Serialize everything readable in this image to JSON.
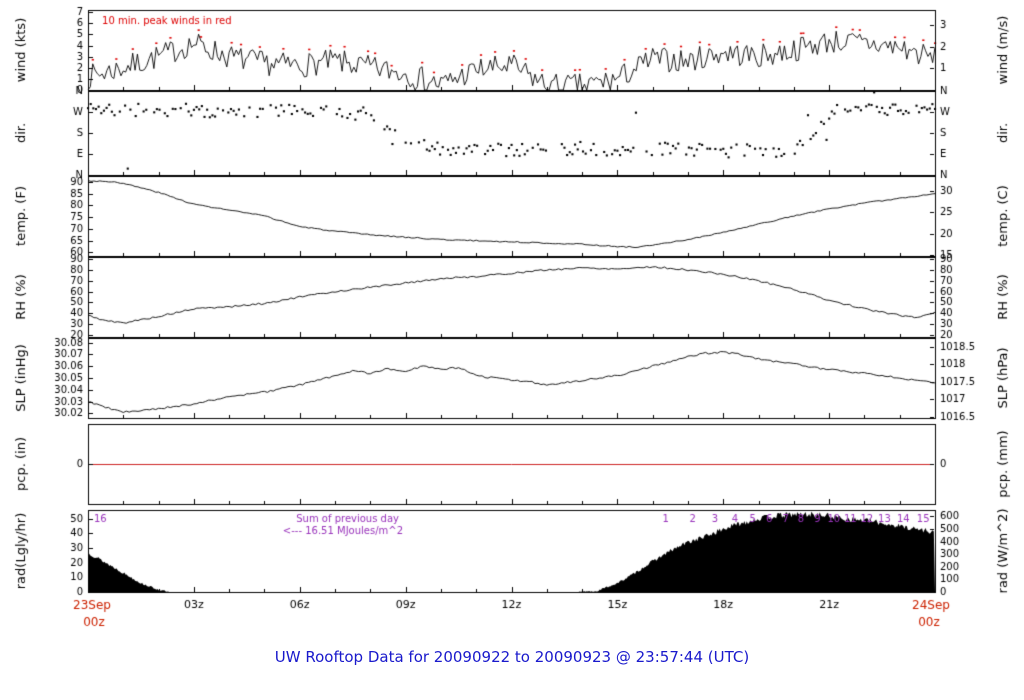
{
  "title": "UW Rooftop Data for 20090922  to  20090923 @ 23:57:44  (UTC)",
  "title_color": "#1a1acc",
  "x_axis": {
    "hours": 24,
    "date_color": "#cc2200",
    "start": {
      "top": "23Sep",
      "bottom": "00z"
    },
    "end": {
      "top": "24Sep",
      "bottom": "00z"
    },
    "ticks": [
      {
        "h": 3,
        "label": "03z"
      },
      {
        "h": 6,
        "label": "06z"
      },
      {
        "h": 9,
        "label": "09z"
      },
      {
        "h": 12,
        "label": "12z"
      },
      {
        "h": 15,
        "label": "15z"
      },
      {
        "h": 18,
        "label": "18z"
      },
      {
        "h": 21,
        "label": "21z"
      }
    ]
  },
  "chart_data": {
    "type": "multi-panel-meteogram",
    "panels": [
      {
        "id": "wind",
        "type": "line",
        "ylabel_left": "wind (kts)",
        "ylabel_right": "wind (m/s)",
        "ylim": [
          0,
          7.2
        ],
        "yticks_left": [
          {
            "v": 0,
            "label": "0"
          },
          {
            "v": 1,
            "label": "1"
          },
          {
            "v": 2,
            "label": "2"
          },
          {
            "v": 3,
            "label": "3"
          },
          {
            "v": 4,
            "label": "4"
          },
          {
            "v": 5,
            "label": "5"
          },
          {
            "v": 6,
            "label": "6"
          },
          {
            "v": 7,
            "label": "7"
          }
        ],
        "yticks_right": [
          {
            "v": 1.94,
            "label": "1"
          },
          {
            "v": 3.89,
            "label": "2"
          },
          {
            "v": 5.83,
            "label": "3"
          }
        ],
        "annotation": "10 min. peak winds in red",
        "annotation_color": "#dd0000",
        "line_color": "#000000",
        "peak_color": "#dd0000",
        "noise": 1.1,
        "seed": 7,
        "keyframes_h": [
          0,
          1,
          2,
          3,
          4,
          5,
          6,
          7,
          8,
          9,
          10,
          11,
          12,
          13,
          14,
          15,
          16,
          17,
          18,
          19,
          20,
          21,
          22,
          23,
          24
        ],
        "keyframes_v": [
          1.2,
          2.0,
          3.0,
          4.2,
          3.0,
          2.4,
          2.2,
          2.6,
          2.0,
          1.5,
          0.5,
          1.8,
          2.2,
          0.4,
          0.4,
          1.0,
          2.8,
          2.6,
          3.4,
          3.0,
          3.6,
          4.4,
          4.2,
          3.8,
          2.8
        ]
      },
      {
        "id": "dir",
        "type": "scatter",
        "ylabel_left": "dir.",
        "ylabel_right": "dir.",
        "ylim": [
          0,
          360
        ],
        "yticks_left": [
          {
            "v": 360,
            "label": "N"
          },
          {
            "v": 270,
            "label": "W"
          },
          {
            "v": 180,
            "label": "S"
          },
          {
            "v": 90,
            "label": "E"
          },
          {
            "v": 0,
            "label": "N"
          }
        ],
        "yticks_right": [
          {
            "v": 360,
            "label": "N"
          },
          {
            "v": 270,
            "label": "W"
          },
          {
            "v": 180,
            "label": "S"
          },
          {
            "v": 90,
            "label": "E"
          },
          {
            "v": 0,
            "label": "N"
          }
        ],
        "dot_color": "#000000",
        "noise": 28,
        "seed": 11,
        "keyframes_h": [
          0,
          1,
          2,
          3,
          4,
          5,
          6,
          7,
          8,
          8.6,
          9,
          10,
          11,
          12,
          13,
          14,
          15,
          16,
          17,
          18,
          19,
          20,
          20.6,
          21,
          22,
          23,
          24
        ],
        "keyframes_v": [
          285,
          280,
          275,
          280,
          270,
          272,
          278,
          268,
          262,
          200,
          120,
          112,
          118,
          105,
          115,
          108,
          105,
          112,
          108,
          100,
          108,
          104,
          200,
          270,
          282,
          278,
          284
        ]
      },
      {
        "id": "temp",
        "type": "line",
        "ylabel_left": "temp. (F)",
        "ylabel_right": "temp. (C)",
        "ylim": [
          58.5,
          92.5
        ],
        "yticks_left": [
          {
            "v": 60,
            "label": "60"
          },
          {
            "v": 65,
            "label": "65"
          },
          {
            "v": 70,
            "label": "70"
          },
          {
            "v": 75,
            "label": "75"
          },
          {
            "v": 80,
            "label": "80"
          },
          {
            "v": 85,
            "label": "85"
          },
          {
            "v": 90,
            "label": "90"
          }
        ],
        "yticks_right": [
          {
            "v": 59,
            "label": "15"
          },
          {
            "v": 68,
            "label": "20"
          },
          {
            "v": 77,
            "label": "25"
          },
          {
            "v": 86,
            "label": "30"
          }
        ],
        "line_color": "#000000",
        "noise": 0.25,
        "seed": 3,
        "keyframes_h": [
          0,
          0.8,
          1.5,
          2,
          3,
          4,
          5,
          6,
          7,
          8,
          9,
          10,
          11,
          12,
          13,
          14,
          15,
          15.5,
          16,
          17,
          18,
          19,
          20,
          21,
          22,
          23,
          24
        ],
        "keyframes_v": [
          90.5,
          90,
          87.5,
          85.5,
          80.5,
          78,
          75.5,
          71,
          69,
          67.5,
          66.5,
          65.5,
          65,
          64.5,
          64,
          63.5,
          62.5,
          62.3,
          63,
          65.5,
          68.5,
          72,
          75.5,
          78.5,
          81,
          83,
          85
        ]
      },
      {
        "id": "rh",
        "type": "line",
        "ylabel_left": "RH (%)",
        "ylabel_right": "RH (%)",
        "ylim": [
          18,
          92
        ],
        "yticks_left": [
          {
            "v": 20,
            "label": "20"
          },
          {
            "v": 30,
            "label": "30"
          },
          {
            "v": 40,
            "label": "40"
          },
          {
            "v": 50,
            "label": "50"
          },
          {
            "v": 60,
            "label": "60"
          },
          {
            "v": 70,
            "label": "70"
          },
          {
            "v": 80,
            "label": "80"
          },
          {
            "v": 90,
            "label": "90"
          }
        ],
        "yticks_right": [
          {
            "v": 20,
            "label": "20"
          },
          {
            "v": 30,
            "label": "30"
          },
          {
            "v": 40,
            "label": "40"
          },
          {
            "v": 50,
            "label": "50"
          },
          {
            "v": 60,
            "label": "60"
          },
          {
            "v": 70,
            "label": "70"
          },
          {
            "v": 80,
            "label": "80"
          },
          {
            "v": 90,
            "label": "90"
          }
        ],
        "line_color": "#000000",
        "noise": 0.8,
        "seed": 5,
        "keyframes_h": [
          0,
          0.5,
          1,
          2,
          3,
          4,
          5,
          6,
          7,
          8,
          9,
          10,
          11,
          12,
          13,
          14,
          15,
          16,
          17,
          18,
          19,
          20,
          21,
          22,
          23,
          23.5,
          24
        ],
        "keyframes_v": [
          38,
          33,
          31,
          37,
          44,
          46,
          49,
          55,
          60,
          64,
          68,
          72,
          74,
          77,
          80,
          82,
          81,
          83,
          80,
          76,
          70,
          62,
          52,
          44,
          38,
          36,
          41
        ]
      },
      {
        "id": "slp",
        "type": "line",
        "ylabel_left": "SLP (inHg)",
        "ylabel_right": "SLP (hPa)",
        "ylim": [
          30.016,
          30.084
        ],
        "yticks_left": [
          {
            "v": 30.02,
            "label": "30.02"
          },
          {
            "v": 30.03,
            "label": "30.03"
          },
          {
            "v": 30.04,
            "label": "30.04"
          },
          {
            "v": 30.05,
            "label": "30.05"
          },
          {
            "v": 30.06,
            "label": "30.06"
          },
          {
            "v": 30.07,
            "label": "30.07"
          },
          {
            "v": 30.08,
            "label": "30.08"
          }
        ],
        "yticks_right": [
          {
            "v": 30.0172,
            "label": "1016.5"
          },
          {
            "v": 30.032,
            "label": "1017"
          },
          {
            "v": 30.0467,
            "label": "1017.5"
          },
          {
            "v": 30.0615,
            "label": "1018"
          },
          {
            "v": 30.0763,
            "label": "1018.5"
          }
        ],
        "line_color": "#000000",
        "noise": 0.0008,
        "seed": 9,
        "keyframes_h": [
          0,
          0.5,
          1,
          1.5,
          2,
          3,
          4,
          5,
          6,
          7,
          7.5,
          8,
          8.5,
          9,
          9.5,
          10,
          10.5,
          11,
          11.5,
          12,
          12.5,
          13,
          13.5,
          14,
          15,
          16,
          17,
          17.5,
          18,
          18.5,
          19,
          20,
          21,
          22,
          23,
          24
        ],
        "keyframes_v": [
          30.03,
          30.025,
          30.021,
          30.022,
          30.024,
          30.028,
          30.034,
          30.038,
          30.044,
          30.052,
          30.056,
          30.054,
          30.058,
          30.056,
          30.06,
          30.057,
          30.059,
          30.052,
          30.05,
          30.048,
          30.047,
          30.044,
          30.046,
          30.048,
          30.052,
          30.06,
          30.068,
          30.071,
          30.072,
          30.07,
          30.066,
          30.062,
          30.057,
          30.054,
          30.05,
          30.046
        ]
      },
      {
        "id": "pcp",
        "type": "line",
        "ylabel_left": "pcp. (in)",
        "ylabel_right": "pcp. (mm)",
        "ylim": [
          -1,
          1
        ],
        "yticks_left": [
          {
            "v": 0,
            "label": "0"
          }
        ],
        "yticks_right": [
          {
            "v": 0,
            "label": "0"
          }
        ],
        "line_color": "#cc2222",
        "value": 0
      },
      {
        "id": "rad",
        "type": "area",
        "ylabel_left": "rad(Lgly/hr)",
        "ylabel_right": "rad (W/m^2)",
        "ylim": [
          0,
          56
        ],
        "yticks_left": [
          {
            "v": 0,
            "label": "0"
          },
          {
            "v": 10,
            "label": "10"
          },
          {
            "v": 20,
            "label": "20"
          },
          {
            "v": 30,
            "label": "30"
          },
          {
            "v": 40,
            "label": "40"
          },
          {
            "v": 50,
            "label": "50"
          }
        ],
        "yticks_right": [
          {
            "v": 0,
            "label": "0"
          },
          {
            "v": 8.6,
            "label": "100"
          },
          {
            "v": 17.21,
            "label": "200"
          },
          {
            "v": 25.81,
            "label": "300"
          },
          {
            "v": 34.42,
            "label": "400"
          },
          {
            "v": 43.02,
            "label": "500"
          },
          {
            "v": 51.62,
            "label": "600"
          }
        ],
        "fill_color": "#000000",
        "noise": 1.6,
        "seed": 13,
        "w_per_lgly": 11.622,
        "annotation_color": "#9933bb",
        "annotations": [
          {
            "text": "Sum of previous day",
            "h": 5.9,
            "dy": 8
          },
          {
            "text": "<--- 16.51 MJoules/m^2",
            "h": 5.52,
            "dy": 20
          }
        ],
        "carryover_marker": {
          "label": "16",
          "h": 0.35
        },
        "keyframes_h": [
          0,
          0.5,
          1,
          1.5,
          2,
          2.3,
          3,
          13.9,
          14.4,
          15,
          15.5,
          16,
          16.5,
          17,
          17.5,
          18,
          18.5,
          19,
          19.5,
          20,
          20.5,
          21,
          21.5,
          22,
          22.5,
          23,
          23.5,
          24
        ],
        "keyframes_v": [
          27,
          20,
          13,
          6,
          1.5,
          0,
          0,
          0,
          0.5,
          6,
          13,
          21,
          28,
          34,
          38,
          43,
          47,
          50,
          52,
          53,
          53,
          52,
          50,
          49,
          47,
          45,
          43,
          41
        ]
      }
    ]
  }
}
